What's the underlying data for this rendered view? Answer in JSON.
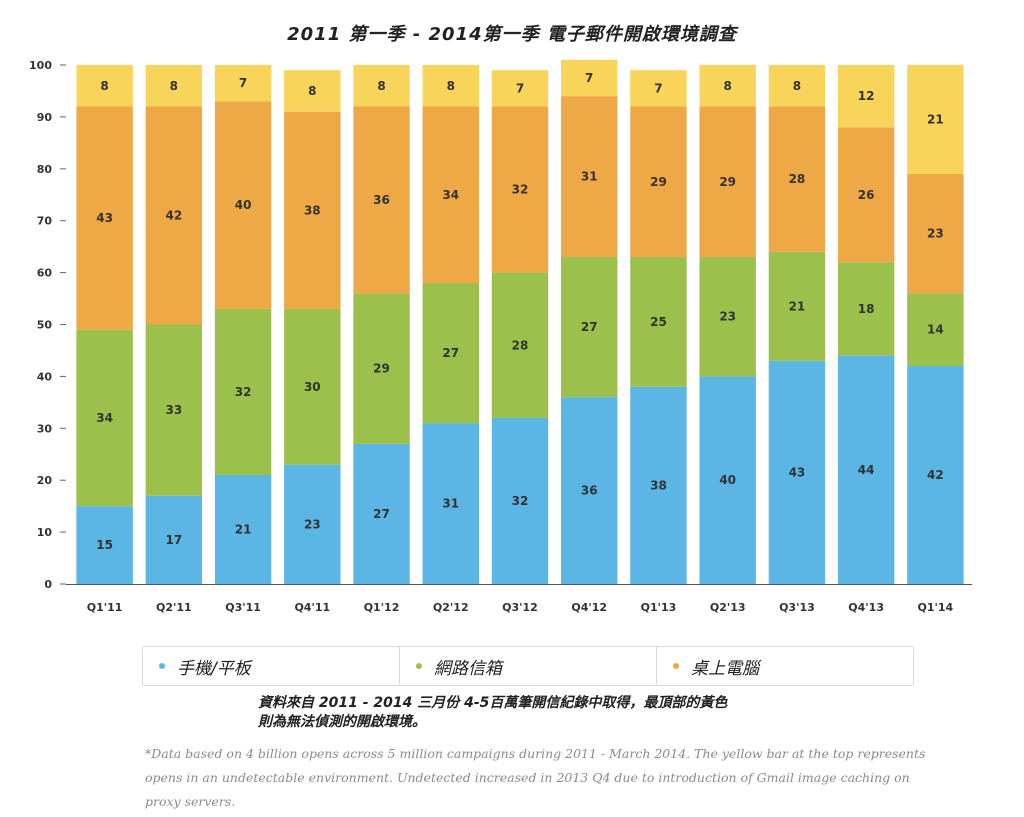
{
  "chart_data": {
    "type": "bar",
    "stacked": true,
    "title": "2011 第一季 - 2014第一季  電子郵件開啟環境調查",
    "categories": [
      "Q1'11",
      "Q2'11",
      "Q3'11",
      "Q4'11",
      "Q1'12",
      "Q2'12",
      "Q3'12",
      "Q4'12",
      "Q1'13",
      "Q2'13",
      "Q3'13",
      "Q4'13",
      "Q1'14"
    ],
    "series": [
      {
        "name": "手機/平板",
        "color": "#5bb5e5",
        "values": [
          15,
          17,
          21,
          23,
          27,
          31,
          32,
          36,
          38,
          40,
          43,
          44,
          42
        ]
      },
      {
        "name": "網路信箱",
        "color": "#9bc04b",
        "values": [
          34,
          33,
          32,
          30,
          29,
          27,
          28,
          27,
          25,
          23,
          21,
          18,
          14
        ]
      },
      {
        "name": "桌上電腦",
        "color": "#eea845",
        "values": [
          43,
          42,
          40,
          38,
          36,
          34,
          32,
          31,
          29,
          29,
          28,
          26,
          23
        ]
      },
      {
        "name": "",
        "color": "#f8d55a",
        "values": [
          8,
          8,
          7,
          8,
          8,
          8,
          7,
          7,
          7,
          8,
          8,
          12,
          21
        ]
      }
    ],
    "yticks": [
      0,
      10,
      20,
      30,
      40,
      50,
      60,
      70,
      80,
      90,
      100
    ],
    "ylim": [
      0,
      100
    ],
    "xlabel": "",
    "ylabel": "",
    "grid": false,
    "legend_position": "bottom"
  },
  "legend": [
    {
      "label": "手機/平板",
      "color": "#5bb5e5"
    },
    {
      "label": "網路信箱",
      "color": "#9bc04b"
    },
    {
      "label": "桌上電腦",
      "color": "#eea845"
    }
  ],
  "note_zh_line1": "資料來自 2011 - 2014 三月份 4-5百萬筆開信紀錄中取得，最頂部的黃色",
  "note_zh_line2": "則為無法偵測的開啟環境。",
  "note_en": "*Data based on 4 billion opens across 5 million campaigns during 2011 - March 2014. The yellow bar at the top represents opens in an undetectable environment. Undetected increased in 2013 Q4 due to introduction of Gmail image caching on proxy servers."
}
